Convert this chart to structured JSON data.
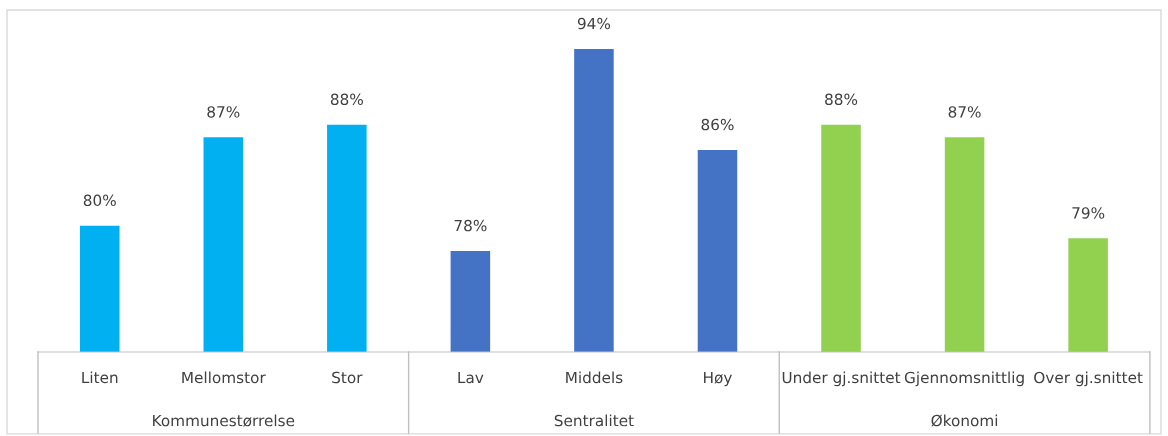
{
  "chart_data": {
    "type": "bar",
    "categories": [
      "Liten",
      "Mellomstor",
      "Stor",
      "Lav",
      "Middels",
      "Høy",
      "Under gj.snittet",
      "Gjennomsnittlig",
      "Over gj.snittet"
    ],
    "values": [
      80,
      87,
      88,
      78,
      94,
      86,
      88,
      87,
      79
    ],
    "value_labels": [
      "80%",
      "87%",
      "88%",
      "78%",
      "94%",
      "86%",
      "88%",
      "87%",
      "79%"
    ],
    "colors": [
      "#00b0f0",
      "#00b0f0",
      "#00b0f0",
      "#4472c4",
      "#4472c4",
      "#4472c4",
      "#92d050",
      "#92d050",
      "#92d050"
    ],
    "ylim": [
      70,
      97
    ],
    "annotations": [
      "Kommunestørrelse",
      "Sentralitet",
      "Økonomi"
    ],
    "grid": false,
    "legend": false
  }
}
